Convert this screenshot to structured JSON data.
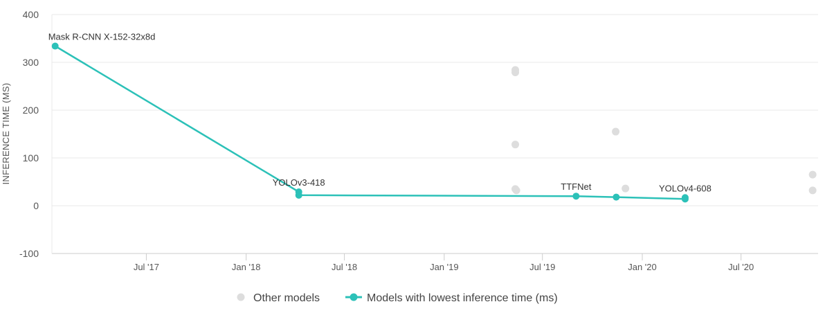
{
  "chart_data": {
    "type": "scatter",
    "ylabel": "INFERENCE TIME (MS)",
    "ylim": [
      -100,
      400
    ],
    "yticks": [
      400,
      300,
      200,
      100,
      0,
      -100
    ],
    "xlim": [
      "2017-01-08",
      "2020-11-20"
    ],
    "xticks": [
      {
        "date": "2017-07-01",
        "label": "Jul '17"
      },
      {
        "date": "2018-01-01",
        "label": "Jan '18"
      },
      {
        "date": "2018-07-01",
        "label": "Jul '18"
      },
      {
        "date": "2019-01-01",
        "label": "Jan '19"
      },
      {
        "date": "2019-07-01",
        "label": "Jul '19"
      },
      {
        "date": "2020-01-01",
        "label": "Jan '20"
      },
      {
        "date": "2020-07-01",
        "label": "Jul '20"
      }
    ],
    "grid": true,
    "legend_position": "bottom",
    "colors": {
      "other": "#dddddd",
      "best": "#2cc1b8",
      "grid": "#e8e8e8",
      "axis": "#cccccc"
    },
    "series": [
      {
        "name": "Other models",
        "style": "scatter",
        "points": [
          {
            "x": "2019-05-12",
            "y": 284
          },
          {
            "x": "2019-05-12",
            "y": 279
          },
          {
            "x": "2019-05-12",
            "y": 128
          },
          {
            "x": "2019-05-12",
            "y": 35
          },
          {
            "x": "2019-05-14",
            "y": 32
          },
          {
            "x": "2019-11-13",
            "y": 155
          },
          {
            "x": "2019-12-01",
            "y": 36
          },
          {
            "x": "2020-11-10",
            "y": 65
          },
          {
            "x": "2020-11-10",
            "y": 32
          }
        ]
      },
      {
        "name": "Models with lowest inference time (ms)",
        "style": "line",
        "points": [
          {
            "x": "2017-01-14",
            "y": 334,
            "label": "Mask R-CNN X-152-32x8d"
          },
          {
            "x": "2018-04-08",
            "y": 29,
            "label": "YOLOv3-418"
          },
          {
            "x": "2018-04-08",
            "y": 22,
            "label": ""
          },
          {
            "x": "2019-09-01",
            "y": 20,
            "label": "TTFNet"
          },
          {
            "x": "2019-11-14",
            "y": 18,
            "label": ""
          },
          {
            "x": "2020-03-20",
            "y": 17,
            "label": "YOLOv4-608"
          },
          {
            "x": "2020-03-20",
            "y": 14,
            "label": ""
          }
        ]
      }
    ]
  }
}
